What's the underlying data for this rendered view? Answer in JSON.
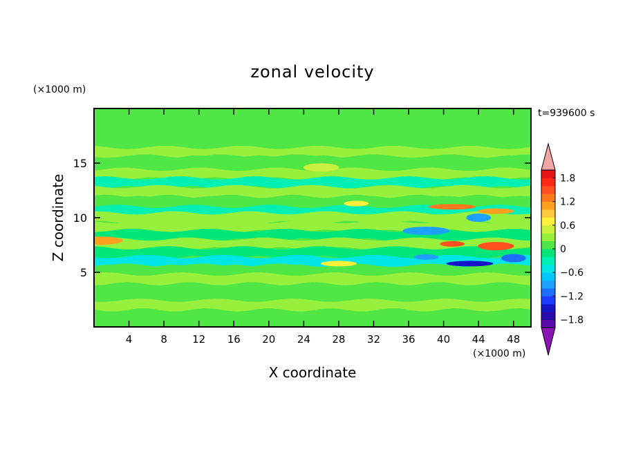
{
  "chart_data": {
    "type": "heatmap",
    "title": "zonal velocity",
    "xlabel": "X coordinate",
    "ylabel": "Z coordinate",
    "x_unit": "(×1000 m)",
    "y_unit": "(×1000 m)",
    "time_label": "t=939600 s",
    "xlim": [
      0,
      50
    ],
    "ylim": [
      0,
      20
    ],
    "x_ticks": [
      4,
      8,
      12,
      16,
      20,
      24,
      28,
      32,
      36,
      40,
      44,
      48
    ],
    "y_ticks": [
      5,
      10,
      15
    ],
    "grid": false,
    "legend": "right",
    "colorbar": {
      "min": -2.0,
      "max": 2.0,
      "step": 0.2,
      "tick_labels": [
        "1.8",
        "1.2",
        "0.6",
        "0",
        "−0.6",
        "−1.2",
        "−1.8"
      ],
      "tick_values": [
        1.8,
        1.2,
        0.6,
        0,
        -0.6,
        -1.2,
        -1.8
      ],
      "colors": [
        "#5a0aa8",
        "#2a0aa8",
        "#1414c8",
        "#1e3cff",
        "#1e6eff",
        "#1ea0ff",
        "#00c8ff",
        "#00e6e6",
        "#00f0b4",
        "#00e678",
        "#50e646",
        "#96f03c",
        "#c8f03c",
        "#fff03c",
        "#ffc83c",
        "#ffa01e",
        "#ff781e",
        "#ff501e",
        "#ff2814",
        "#e61414"
      ],
      "over_color": "#f4a6a6",
      "under_color": "#8c14b4"
    },
    "z_bands": [
      {
        "z": 19.2,
        "value": 0.15
      },
      {
        "z": 18.0,
        "value": 0.05
      },
      {
        "z": 16.8,
        "value": 0.05
      },
      {
        "z": 16.0,
        "value": 0.35
      },
      {
        "z": 15.2,
        "value": 0.0
      },
      {
        "z": 14.0,
        "value": 0.2
      },
      {
        "z": 13.2,
        "value": -0.3
      },
      {
        "z": 12.4,
        "value": 0.35
      },
      {
        "z": 11.4,
        "value": 0.1
      },
      {
        "z": 10.6,
        "value": -0.35
      },
      {
        "z": 10.0,
        "value": 0.2
      },
      {
        "z": 9.2,
        "value": 0.4
      },
      {
        "z": 8.4,
        "value": -0.2
      },
      {
        "z": 7.6,
        "value": 0.35
      },
      {
        "z": 6.8,
        "value": -0.1
      },
      {
        "z": 6.0,
        "value": -0.5
      },
      {
        "z": 5.2,
        "value": 0.1
      },
      {
        "z": 4.4,
        "value": 0.25
      },
      {
        "z": 3.2,
        "value": 0.1
      },
      {
        "z": 2.0,
        "value": 0.2
      },
      {
        "z": 0.8,
        "value": 0.1
      }
    ],
    "features": [
      {
        "x": 30,
        "z": 11.3,
        "value": 0.8
      },
      {
        "x": 26,
        "z": 14.6,
        "value": 0.5
      },
      {
        "x": 41,
        "z": 11.0,
        "value": 1.2
      },
      {
        "x": 44,
        "z": 10.0,
        "value": -1.0
      },
      {
        "x": 46,
        "z": 10.6,
        "value": 1.0
      },
      {
        "x": 38,
        "z": 8.8,
        "value": -0.9
      },
      {
        "x": 41,
        "z": 7.6,
        "value": 1.4
      },
      {
        "x": 46,
        "z": 7.4,
        "value": 1.4
      },
      {
        "x": 43,
        "z": 5.8,
        "value": -1.5
      },
      {
        "x": 48,
        "z": 6.3,
        "value": -1.2
      },
      {
        "x": 28,
        "z": 5.8,
        "value": 0.7
      },
      {
        "x": 0.6,
        "z": 7.9,
        "value": 1.0
      },
      {
        "x": 38,
        "z": 6.4,
        "value": -0.9
      }
    ]
  }
}
